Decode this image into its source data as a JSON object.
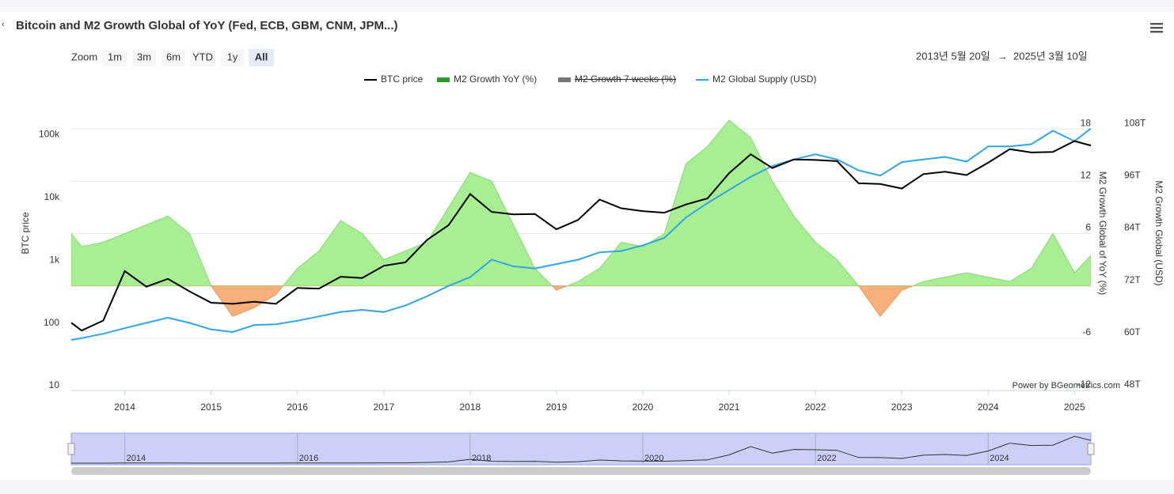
{
  "header": {
    "title": "Bitcoin and M2 Growth Global of YoY (Fed, ECB, GBM, CNM, JPM...)"
  },
  "zoom": {
    "label": "Zoom",
    "buttons": [
      "1m",
      "3m",
      "6m",
      "YTD",
      "1y",
      "All"
    ],
    "selected": "All"
  },
  "range": {
    "from": "2013년 5월 20일",
    "arrow": "→",
    "to": "2025년 3월 10일"
  },
  "credit": "Power by BGeometrics.com",
  "chart_data": {
    "type": "combo",
    "x": [
      2013.38,
      2013.5,
      2013.75,
      2014.0,
      2014.25,
      2014.5,
      2014.75,
      2015.0,
      2015.25,
      2015.5,
      2015.75,
      2016.0,
      2016.25,
      2016.5,
      2016.75,
      2017.0,
      2017.25,
      2017.5,
      2017.75,
      2018.0,
      2018.25,
      2018.5,
      2018.75,
      2019.0,
      2019.25,
      2019.5,
      2019.75,
      2020.0,
      2020.25,
      2020.5,
      2020.75,
      2021.0,
      2021.25,
      2021.5,
      2021.75,
      2022.0,
      2022.25,
      2022.5,
      2022.75,
      2023.0,
      2023.25,
      2023.5,
      2023.75,
      2024.0,
      2024.25,
      2024.5,
      2024.75,
      2025.0,
      2025.19
    ],
    "xlim": [
      2013.38,
      2025.19
    ],
    "xticks": [
      2014,
      2015,
      2016,
      2017,
      2018,
      2019,
      2020,
      2021,
      2022,
      2023,
      2024,
      2025
    ],
    "ylabel": "BTC price",
    "log_scale": true,
    "ylim": [
      10,
      1000000
    ],
    "yticks": [
      10,
      100,
      {
        "value": 1000,
        "label": "1k"
      },
      {
        "value": 10000,
        "label": "10k"
      },
      {
        "value": 100000,
        "label": "100k"
      }
    ],
    "y2label": "M2 Growth Global of YoY (%)",
    "y2lim": [
      -12,
      24
    ],
    "y2ticks": [
      -12,
      -6,
      0,
      6,
      12,
      18
    ],
    "y3label": "M2 Growth Global (USD)",
    "y3lim": [
      48,
      120
    ],
    "y3ticks": [
      {
        "value": 48,
        "label": "48T"
      },
      {
        "value": 60,
        "label": "60T"
      },
      {
        "value": 72,
        "label": "72T"
      },
      {
        "value": 84,
        "label": "84T"
      },
      {
        "value": 96,
        "label": "96T"
      },
      {
        "value": 108,
        "label": "108T"
      }
    ],
    "grid": true,
    "series": [
      {
        "name": "BTC price",
        "color": "#000000",
        "axis": "y",
        "kind": "line",
        "values": [
          120,
          90,
          130,
          800,
          450,
          600,
          380,
          250,
          240,
          260,
          240,
          430,
          420,
          650,
          620,
          970,
          1100,
          2500,
          4300,
          13500,
          7000,
          6400,
          6500,
          3700,
          5200,
          11000,
          8000,
          7200,
          6800,
          9200,
          11500,
          29000,
          58000,
          35000,
          48000,
          47000,
          45000,
          20000,
          19500,
          16500,
          28000,
          30500,
          27000,
          42500,
          70000,
          62000,
          63000,
          94000,
          80000
        ]
      },
      {
        "name": "M2 Growth YoY (%)",
        "color": "#a8ee92",
        "negative_color": "#f7b07a",
        "axis": "y2",
        "kind": "area",
        "values": [
          6,
          4.5,
          5,
          6,
          7,
          8,
          6,
          0,
          -3.5,
          -2.5,
          -1,
          2,
          4,
          7.5,
          6,
          3,
          4,
          5,
          9,
          13,
          12,
          7,
          2,
          -0.5,
          0.5,
          2,
          5,
          4.5,
          6,
          14,
          16,
          19,
          17,
          12,
          8,
          5,
          3,
          0,
          -3.5,
          -0.5,
          0.5,
          1,
          1.5,
          1,
          0.5,
          2,
          6,
          1.5,
          3.5
        ]
      },
      {
        "name": "M2 Growth 7 weeks (%)",
        "color": "#777777",
        "visible": false
      },
      {
        "name": "M2 Global Supply (USD)",
        "color": "#2ea6e8",
        "axis": "y3",
        "kind": "line",
        "values": [
          59.6,
          60,
          61,
          62.3,
          63.5,
          64.7,
          63.5,
          62,
          61.4,
          63,
          63.2,
          64,
          65,
          66,
          66.5,
          66,
          67.5,
          69.6,
          72,
          74,
          78,
          76.5,
          76,
          77,
          78,
          79.7,
          80,
          81.3,
          83,
          87.7,
          91,
          94,
          97,
          99.5,
          101,
          102.2,
          101,
          98.5,
          97.3,
          100.4,
          101,
          101.6,
          100.5,
          104,
          104,
          104.5,
          107.6,
          105.2,
          108.1
        ]
      }
    ]
  }
}
